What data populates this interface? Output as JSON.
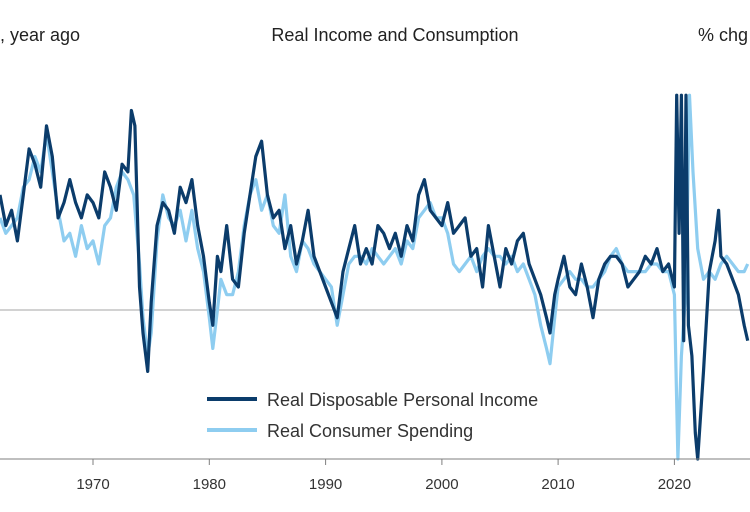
{
  "chart_data": {
    "type": "line",
    "title": "Real Income and Consumption",
    "left_unit_label": ", year ago",
    "right_unit_label": "% chg",
    "xlabel": "",
    "ylabel": "",
    "x_ticks": [
      1970,
      1980,
      1990,
      2000,
      2010,
      2020
    ],
    "xlim": [
      1962,
      2026.5
    ],
    "ylim": [
      -12,
      14
    ],
    "zero_line": 0,
    "grid": false,
    "legend_position": "bottom-center",
    "series": [
      {
        "name": "Real Disposable Personal Income",
        "color": "#0b3c6b",
        "points": [
          [
            1962.0,
            7.5
          ],
          [
            1962.5,
            5.5
          ],
          [
            1963.0,
            6.5
          ],
          [
            1963.5,
            4.5
          ],
          [
            1964.0,
            7.5
          ],
          [
            1964.5,
            10.5
          ],
          [
            1965.0,
            9.5
          ],
          [
            1965.5,
            8.0
          ],
          [
            1966.0,
            12.0
          ],
          [
            1966.5,
            10.0
          ],
          [
            1967.0,
            6.0
          ],
          [
            1967.5,
            7.0
          ],
          [
            1968.0,
            8.5
          ],
          [
            1968.5,
            7.0
          ],
          [
            1969.0,
            6.0
          ],
          [
            1969.5,
            7.5
          ],
          [
            1970.0,
            7.0
          ],
          [
            1970.5,
            6.0
          ],
          [
            1971.0,
            9.0
          ],
          [
            1971.5,
            8.0
          ],
          [
            1972.0,
            6.5
          ],
          [
            1972.5,
            9.5
          ],
          [
            1973.0,
            9.0
          ],
          [
            1973.3,
            13.0
          ],
          [
            1973.6,
            12.0
          ],
          [
            1974.0,
            1.5
          ],
          [
            1974.3,
            -1.5
          ],
          [
            1974.7,
            -4.0
          ],
          [
            1975.0,
            0.5
          ],
          [
            1975.5,
            5.5
          ],
          [
            1976.0,
            7.0
          ],
          [
            1976.5,
            6.5
          ],
          [
            1977.0,
            5.0
          ],
          [
            1977.5,
            8.0
          ],
          [
            1978.0,
            7.0
          ],
          [
            1978.5,
            8.5
          ],
          [
            1979.0,
            5.5
          ],
          [
            1979.5,
            3.5
          ],
          [
            1980.0,
            0.5
          ],
          [
            1980.3,
            -1.0
          ],
          [
            1980.7,
            3.5
          ],
          [
            1981.0,
            2.5
          ],
          [
            1981.5,
            5.5
          ],
          [
            1982.0,
            2.0
          ],
          [
            1982.5,
            1.5
          ],
          [
            1983.0,
            5.0
          ],
          [
            1983.5,
            7.5
          ],
          [
            1984.0,
            10.0
          ],
          [
            1984.5,
            11.0
          ],
          [
            1985.0,
            7.5
          ],
          [
            1985.5,
            6.0
          ],
          [
            1986.0,
            6.5
          ],
          [
            1986.5,
            4.0
          ],
          [
            1987.0,
            5.5
          ],
          [
            1987.5,
            3.0
          ],
          [
            1988.0,
            4.5
          ],
          [
            1988.5,
            6.5
          ],
          [
            1989.0,
            3.5
          ],
          [
            1989.5,
            2.5
          ],
          [
            1990.0,
            1.5
          ],
          [
            1990.5,
            0.5
          ],
          [
            1991.0,
            -0.5
          ],
          [
            1991.5,
            2.5
          ],
          [
            1992.0,
            4.0
          ],
          [
            1992.5,
            5.5
          ],
          [
            1993.0,
            3.0
          ],
          [
            1993.5,
            4.0
          ],
          [
            1994.0,
            3.0
          ],
          [
            1994.5,
            5.5
          ],
          [
            1995.0,
            5.0
          ],
          [
            1995.5,
            4.0
          ],
          [
            1996.0,
            5.0
          ],
          [
            1996.5,
            3.5
          ],
          [
            1997.0,
            5.5
          ],
          [
            1997.5,
            4.5
          ],
          [
            1998.0,
            7.5
          ],
          [
            1998.5,
            8.5
          ],
          [
            1999.0,
            6.5
          ],
          [
            1999.5,
            6.0
          ],
          [
            2000.0,
            5.5
          ],
          [
            2000.5,
            7.0
          ],
          [
            2001.0,
            5.0
          ],
          [
            2001.5,
            5.5
          ],
          [
            2002.0,
            6.0
          ],
          [
            2002.5,
            3.5
          ],
          [
            2003.0,
            4.0
          ],
          [
            2003.5,
            1.5
          ],
          [
            2004.0,
            5.5
          ],
          [
            2004.5,
            3.5
          ],
          [
            2005.0,
            1.5
          ],
          [
            2005.5,
            4.0
          ],
          [
            2006.0,
            3.0
          ],
          [
            2006.5,
            4.5
          ],
          [
            2007.0,
            5.0
          ],
          [
            2007.5,
            3.0
          ],
          [
            2008.0,
            2.0
          ],
          [
            2008.5,
            1.0
          ],
          [
            2009.0,
            -0.5
          ],
          [
            2009.3,
            -1.5
          ],
          [
            2009.7,
            1.0
          ],
          [
            2010.0,
            2.0
          ],
          [
            2010.5,
            3.5
          ],
          [
            2011.0,
            1.5
          ],
          [
            2011.5,
            1.0
          ],
          [
            2012.0,
            3.0
          ],
          [
            2012.5,
            1.5
          ],
          [
            2013.0,
            -0.5
          ],
          [
            2013.5,
            2.0
          ],
          [
            2014.0,
            3.0
          ],
          [
            2014.5,
            3.5
          ],
          [
            2015.0,
            3.5
          ],
          [
            2015.5,
            3.0
          ],
          [
            2016.0,
            1.5
          ],
          [
            2016.5,
            2.0
          ],
          [
            2017.0,
            2.5
          ],
          [
            2017.5,
            3.5
          ],
          [
            2018.0,
            3.0
          ],
          [
            2018.5,
            4.0
          ],
          [
            2019.0,
            2.5
          ],
          [
            2019.5,
            3.0
          ],
          [
            2020.0,
            1.5
          ],
          [
            2020.2,
            14.0
          ],
          [
            2020.4,
            5.0
          ],
          [
            2020.6,
            14.0
          ],
          [
            2020.8,
            -2.0
          ],
          [
            2021.0,
            14.0
          ],
          [
            2021.2,
            -1.0
          ],
          [
            2021.5,
            -3.0
          ],
          [
            2021.8,
            -8.0
          ],
          [
            2022.0,
            -10.5
          ],
          [
            2022.5,
            -4.0
          ],
          [
            2023.0,
            2.5
          ],
          [
            2023.5,
            4.5
          ],
          [
            2023.8,
            6.5
          ],
          [
            2024.0,
            3.5
          ],
          [
            2024.5,
            3.0
          ],
          [
            2025.0,
            2.0
          ],
          [
            2025.5,
            1.0
          ],
          [
            2026.0,
            -1.0
          ],
          [
            2026.3,
            -2.0
          ]
        ]
      },
      {
        "name": "Real Consumer Spending",
        "color": "#8ecdf0",
        "points": [
          [
            1962.0,
            6.0
          ],
          [
            1962.5,
            5.0
          ],
          [
            1963.0,
            5.5
          ],
          [
            1963.5,
            6.0
          ],
          [
            1964.0,
            8.0
          ],
          [
            1964.5,
            8.5
          ],
          [
            1965.0,
            10.0
          ],
          [
            1965.5,
            9.0
          ],
          [
            1966.0,
            11.5
          ],
          [
            1966.5,
            9.0
          ],
          [
            1967.0,
            6.5
          ],
          [
            1967.5,
            4.5
          ],
          [
            1968.0,
            5.0
          ],
          [
            1968.5,
            3.5
          ],
          [
            1969.0,
            5.5
          ],
          [
            1969.5,
            4.0
          ],
          [
            1970.0,
            4.5
          ],
          [
            1970.5,
            3.0
          ],
          [
            1971.0,
            5.5
          ],
          [
            1971.5,
            6.0
          ],
          [
            1972.0,
            8.0
          ],
          [
            1972.5,
            9.0
          ],
          [
            1973.0,
            8.5
          ],
          [
            1973.5,
            7.5
          ],
          [
            1974.0,
            3.0
          ],
          [
            1974.3,
            -0.5
          ],
          [
            1974.7,
            -3.0
          ],
          [
            1975.0,
            -1.5
          ],
          [
            1975.5,
            4.5
          ],
          [
            1976.0,
            7.5
          ],
          [
            1976.5,
            6.0
          ],
          [
            1977.0,
            5.5
          ],
          [
            1977.5,
            6.5
          ],
          [
            1978.0,
            4.5
          ],
          [
            1978.5,
            6.5
          ],
          [
            1979.0,
            4.0
          ],
          [
            1979.5,
            2.5
          ],
          [
            1980.0,
            -0.5
          ],
          [
            1980.3,
            -2.5
          ],
          [
            1980.7,
            0.0
          ],
          [
            1981.0,
            2.0
          ],
          [
            1981.5,
            1.0
          ],
          [
            1982.0,
            1.0
          ],
          [
            1982.5,
            2.5
          ],
          [
            1983.0,
            5.5
          ],
          [
            1983.5,
            7.5
          ],
          [
            1984.0,
            8.5
          ],
          [
            1984.5,
            6.5
          ],
          [
            1985.0,
            7.5
          ],
          [
            1985.5,
            5.5
          ],
          [
            1986.0,
            5.0
          ],
          [
            1986.5,
            7.5
          ],
          [
            1987.0,
            3.5
          ],
          [
            1987.5,
            2.5
          ],
          [
            1988.0,
            4.5
          ],
          [
            1988.5,
            4.0
          ],
          [
            1989.0,
            3.0
          ],
          [
            1989.5,
            2.5
          ],
          [
            1990.0,
            2.0
          ],
          [
            1990.5,
            1.5
          ],
          [
            1991.0,
            -1.0
          ],
          [
            1991.5,
            1.0
          ],
          [
            1992.0,
            3.0
          ],
          [
            1992.5,
            3.5
          ],
          [
            1993.0,
            3.5
          ],
          [
            1993.5,
            3.0
          ],
          [
            1994.0,
            4.0
          ],
          [
            1994.5,
            3.5
          ],
          [
            1995.0,
            3.0
          ],
          [
            1995.5,
            3.5
          ],
          [
            1996.0,
            4.0
          ],
          [
            1996.5,
            3.0
          ],
          [
            1997.0,
            4.5
          ],
          [
            1997.5,
            4.0
          ],
          [
            1998.0,
            6.0
          ],
          [
            1998.5,
            6.5
          ],
          [
            1999.0,
            7.0
          ],
          [
            1999.5,
            6.0
          ],
          [
            2000.0,
            6.0
          ],
          [
            2000.5,
            5.0
          ],
          [
            2001.0,
            3.0
          ],
          [
            2001.5,
            2.5
          ],
          [
            2002.0,
            3.0
          ],
          [
            2002.5,
            3.5
          ],
          [
            2003.0,
            2.5
          ],
          [
            2003.5,
            3.5
          ],
          [
            2004.0,
            4.0
          ],
          [
            2004.5,
            3.5
          ],
          [
            2005.0,
            3.5
          ],
          [
            2005.5,
            3.0
          ],
          [
            2006.0,
            3.5
          ],
          [
            2006.5,
            2.5
          ],
          [
            2007.0,
            3.0
          ],
          [
            2007.5,
            2.0
          ],
          [
            2008.0,
            1.0
          ],
          [
            2008.5,
            -1.0
          ],
          [
            2009.0,
            -2.5
          ],
          [
            2009.3,
            -3.5
          ],
          [
            2009.7,
            -0.5
          ],
          [
            2010.0,
            1.5
          ],
          [
            2010.5,
            2.0
          ],
          [
            2011.0,
            2.5
          ],
          [
            2011.5,
            2.0
          ],
          [
            2012.0,
            2.0
          ],
          [
            2012.5,
            1.5
          ],
          [
            2013.0,
            1.5
          ],
          [
            2013.5,
            2.0
          ],
          [
            2014.0,
            2.5
          ],
          [
            2014.5,
            3.5
          ],
          [
            2015.0,
            4.0
          ],
          [
            2015.5,
            3.0
          ],
          [
            2016.0,
            2.5
          ],
          [
            2016.5,
            2.5
          ],
          [
            2017.0,
            2.5
          ],
          [
            2017.5,
            2.5
          ],
          [
            2018.0,
            3.0
          ],
          [
            2018.5,
            3.0
          ],
          [
            2019.0,
            2.5
          ],
          [
            2019.5,
            2.5
          ],
          [
            2020.0,
            1.0
          ],
          [
            2020.3,
            -11.0
          ],
          [
            2020.6,
            -3.0
          ],
          [
            2021.0,
            1.5
          ],
          [
            2021.3,
            14.0
          ],
          [
            2021.6,
            9.0
          ],
          [
            2022.0,
            4.0
          ],
          [
            2022.5,
            2.0
          ],
          [
            2023.0,
            2.5
          ],
          [
            2023.5,
            2.0
          ],
          [
            2024.0,
            3.0
          ],
          [
            2024.5,
            3.5
          ],
          [
            2025.0,
            3.0
          ],
          [
            2025.5,
            2.5
          ],
          [
            2026.0,
            2.5
          ],
          [
            2026.3,
            3.0
          ]
        ]
      }
    ]
  }
}
